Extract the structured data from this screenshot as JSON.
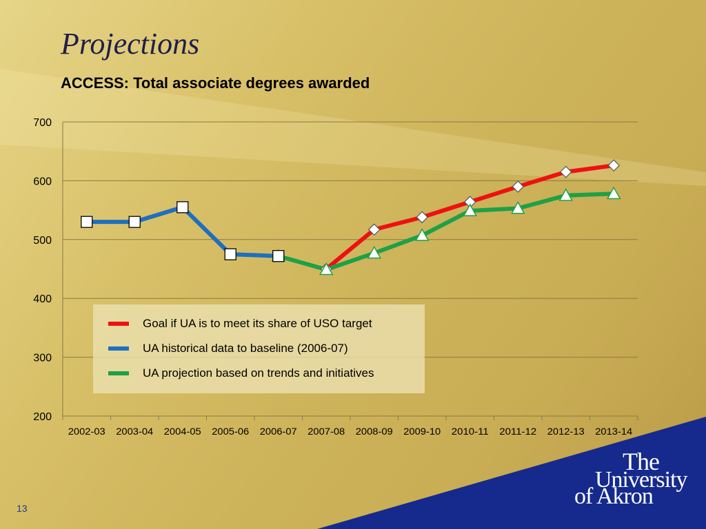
{
  "slide": {
    "title": "Projections",
    "subtitle": "ACCESS: Total associate degrees awarded",
    "page_number": "13"
  },
  "logo": {
    "line1": "The",
    "line2": "University",
    "line3": "of Akron"
  },
  "colors": {
    "goal": "#ee1111",
    "historical": "#1f6fbf",
    "projection": "#1fa046",
    "gridline": "#8c7a40",
    "tick_text": "#000000",
    "brand_blue": "#152a8c"
  },
  "chart_data": {
    "type": "line",
    "title": "ACCESS: Total associate degrees awarded",
    "xlabel": "",
    "ylabel": "",
    "ylim": [
      200,
      700
    ],
    "yticks": [
      200,
      300,
      400,
      500,
      600,
      700
    ],
    "grid": true,
    "legend_position": "inside-lower-left",
    "categories": [
      "2002-03",
      "2003-04",
      "2004-05",
      "2005-06",
      "2006-07",
      "2007-08",
      "2008-09",
      "2009-10",
      "2010-11",
      "2011-12",
      "2012-13",
      "2013-14"
    ],
    "series": [
      {
        "name": "Goal if UA is to meet its share of USO target",
        "color": "#ee1111",
        "marker": "diamond",
        "values": [
          null,
          null,
          null,
          null,
          null,
          450,
          517,
          538,
          564,
          590,
          615,
          626
        ]
      },
      {
        "name": "UA historical data to baseline (2006-07)",
        "color": "#1f6fbf",
        "marker": "square",
        "values": [
          530,
          530,
          555,
          475,
          472,
          null,
          null,
          null,
          null,
          null,
          null,
          null
        ]
      },
      {
        "name": "UA projection based on trends and initiatives",
        "color": "#1fa046",
        "marker": "triangle",
        "values": [
          null,
          null,
          null,
          null,
          472,
          449,
          477,
          507,
          549,
          553,
          575,
          578
        ]
      }
    ]
  }
}
